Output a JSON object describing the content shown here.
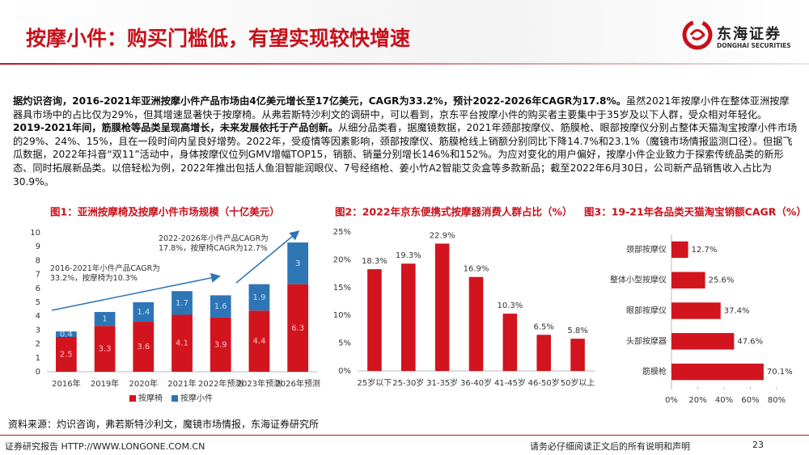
{
  "header": {
    "title": "按摩小件：购买门槛低，有望实现较快增速",
    "logo_name": "东海证券",
    "logo_sub": "DONGHAI SECURITIES"
  },
  "body": {
    "paragraphs": [
      {
        "bold": "据灼识咨询，2016-2021年亚洲按摩小件产品市场由4亿美元增长至17亿美元，CAGR为33.2%，预计2022-2026年CAGR为17.8%。",
        "text": "虽然2021年按摩小件在整体亚洲按摩器具市场中的占比仅为29%，但其增速显著快于按摩椅。从弗若斯特沙利文的调研中，可以看到，京东平台按摩小件的购买者主要集中于35岁及以下人群，受众相对年轻化。"
      },
      {
        "bold": "2019-2021年间，筋膜枪等品类呈现高增长，未来发展依托于产品创新。",
        "text": "从细分品类看，据魔镜数据，2021年颈部按摩仪、筋膜枪、眼部按摩仪分别占整体天猫淘宝按摩小件市场的29%、24%、15%，且在一段时间内呈良好增势。2022年，受疫情等因素影响，颈部按摩仪、筋膜枪线上销额分别同比下降14.7%和23.1%（魔镜市场情报监测口径）。但据飞瓜数据，2022年抖音“双11”活动中，身体按摩仪位列GMV增幅TOP15，销额、销量分别增长146%和152%。为应对变化的用户偏好，按摩小件企业致力于探索传统品类的新形态、同时拓展新品类。以倍轻松为例，2022年推出包括人鱼泪智能润眼仪、7号经络枪、姜小竹A2智能艾灸盒等多款新品；截至2022年6月30日，公司新产品销售收入占比为30.9%。"
      }
    ]
  },
  "chart_data": [
    {
      "type": "bar",
      "stacked": true,
      "title": "图1：亚洲按摩椅及按摩小件市场规模（十亿美元）",
      "categories": [
        "2016年",
        "2019年",
        "2020年",
        "2021年",
        "2022年预测",
        "2023年预测",
        "2026年预测"
      ],
      "series": [
        {
          "name": "按摩椅",
          "color": "#d2141e",
          "values": [
            2.5,
            3.3,
            3.6,
            4.1,
            3.9,
            4.4,
            6.3
          ]
        },
        {
          "name": "按摩小件",
          "color": "#2e75b6",
          "values": [
            0.4,
            1,
            1.4,
            1.7,
            1.6,
            1.9,
            3
          ]
        }
      ],
      "ylim": [
        0,
        10
      ],
      "yticks": [
        0,
        1,
        2,
        3,
        4,
        5,
        6,
        7,
        8,
        9,
        10
      ],
      "annotations": [
        "2016-2021年小件产品CAGR为33.2%，按摩椅为10.3%",
        "2022-2026年小件产品CAGR为17.8%，按摩椅CAGR为12.7%"
      ]
    },
    {
      "type": "bar",
      "title": "图2：2022年京东便携式按摩器消费人群占比（%）",
      "categories": [
        "25岁以下",
        "25-30岁",
        "31-35岁",
        "36-40岁",
        "41-45岁",
        "46-50岁",
        "50岁以上"
      ],
      "values": [
        18.3,
        19.3,
        22.9,
        16.9,
        10.3,
        6.5,
        5.8
      ],
      "value_labels": [
        "18.3%",
        "19.3%",
        "22.9%",
        "16.9%",
        "10.3%",
        "6.5%",
        "5.8%"
      ],
      "color": "#d2141e",
      "ylim": [
        0,
        25
      ],
      "yticks": [
        {
          "value": 0,
          "label": "0%"
        },
        {
          "value": 5,
          "label": "5%"
        },
        {
          "value": 10,
          "label": "10%"
        },
        {
          "value": 15,
          "label": "15%"
        },
        {
          "value": 20,
          "label": "20%"
        },
        {
          "value": 25,
          "label": "25%"
        }
      ]
    },
    {
      "type": "bar",
      "orientation": "horizontal",
      "title": "图3：19-21年各品类天猫淘宝销额CAGR（%）",
      "categories": [
        "颈部按摩仪",
        "整体小型按摩仪",
        "眼部按摩仪",
        "头部按摩器",
        "筋膜枪"
      ],
      "values": [
        12.7,
        25.6,
        37.4,
        47.6,
        70.1
      ],
      "value_labels": [
        "12.7%",
        "25.6%",
        "37.4%",
        "47.6%",
        "70.1%"
      ],
      "color": "#d2141e",
      "xlim": [
        0,
        80
      ],
      "xticks": [
        {
          "value": 0,
          "label": "0%"
        },
        {
          "value": 20,
          "label": "20%"
        },
        {
          "value": 40,
          "label": "40%"
        },
        {
          "value": 60,
          "label": "60%"
        },
        {
          "value": 80,
          "label": "80%"
        }
      ]
    }
  ],
  "source": "资料来源：灼识咨询，弗若斯特沙利文，魔镜市场情报，东海证券研究所",
  "footer": {
    "left": "证券研究报告 HTTP://WWW.LONGONE.COM.CN",
    "right": "请务必仔细阅读正文后的所有说明和声明",
    "page": 23
  }
}
